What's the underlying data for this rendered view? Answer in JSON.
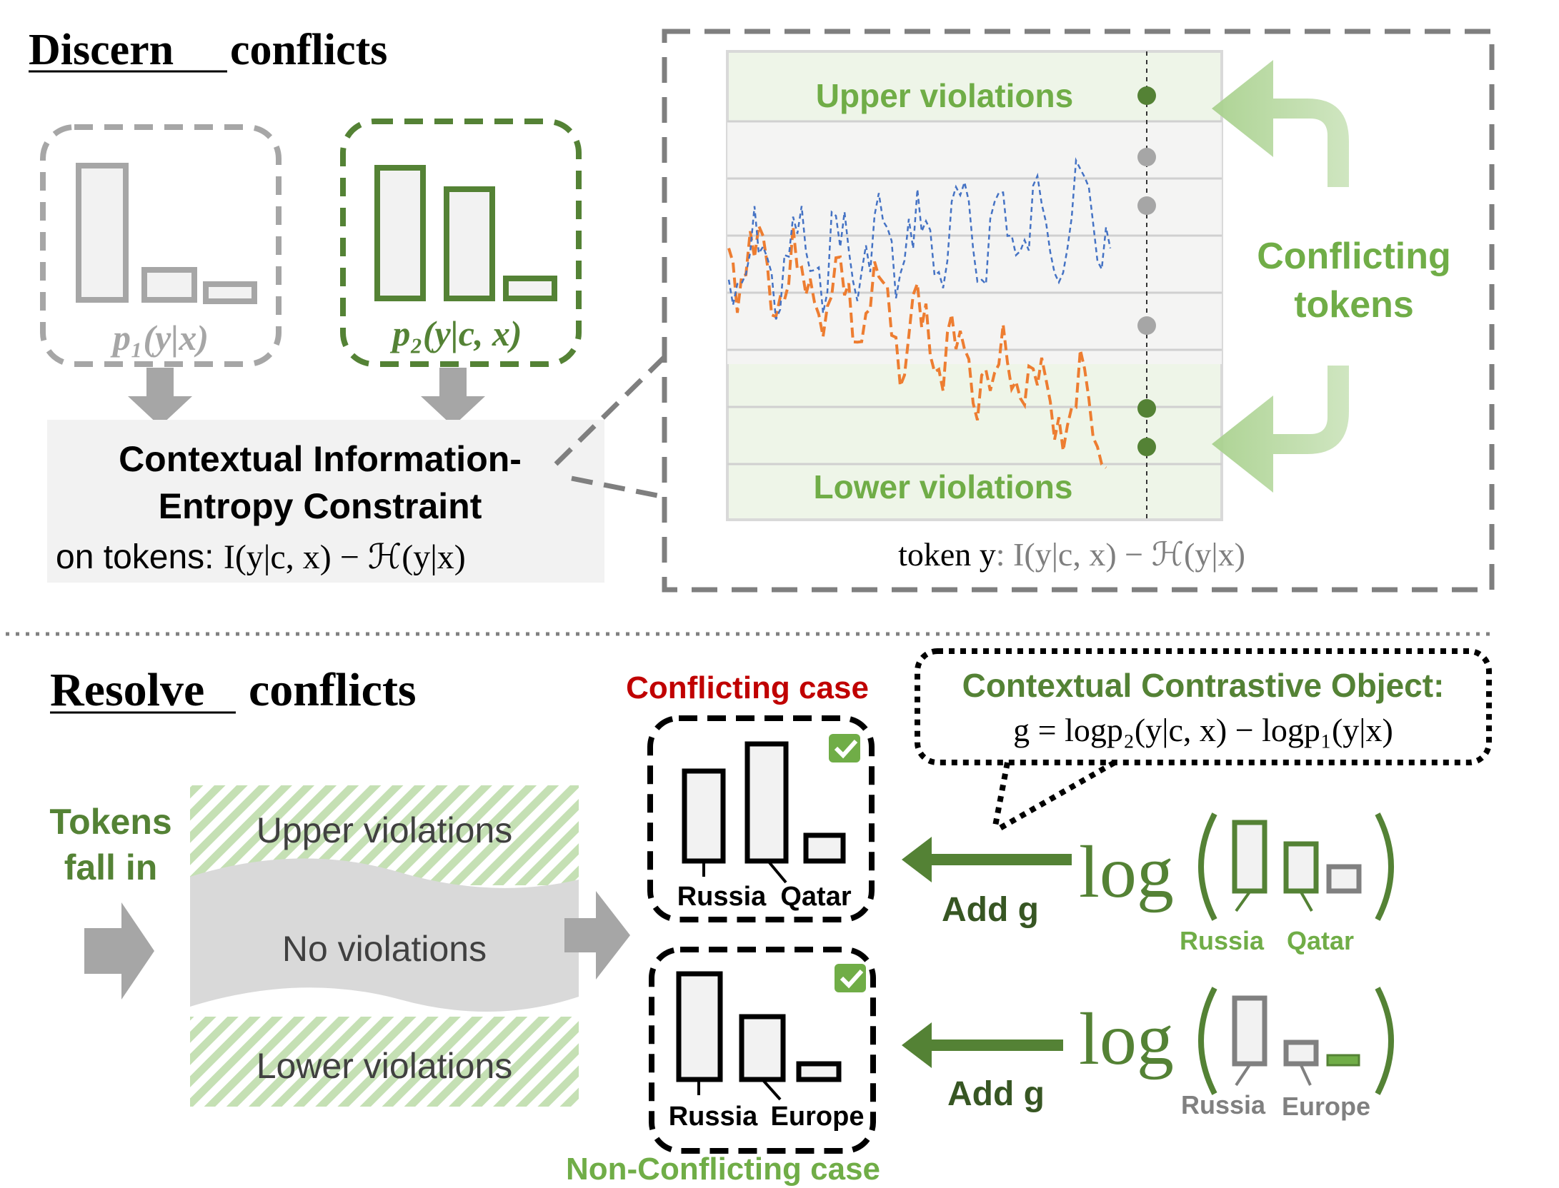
{
  "colors": {
    "green": "#548235",
    "light_green": "#A9D18E",
    "pale_green": "#EEF5E8",
    "gray": "#A6A6A6",
    "dark_gray": "#7F7F7F",
    "panel_gray": "#F2F2F2",
    "orange": "#ED7D31",
    "blue": "#4472C4",
    "red": "#C00000",
    "black": "#000000"
  },
  "discern": {
    "title_word1": "Discern",
    "title_word2": "conflicts",
    "p1_label": "p₁(y|x)",
    "p2_label": "p₂(y|c, x)",
    "constraint_line1": "Contextual Information-",
    "constraint_line2": "Entropy Constraint",
    "constraint_line3_prefix": "on tokens: ",
    "constraint_line3_formula": "I(y|c, x) − ℋ(y|x)"
  },
  "plot": {
    "upper_label": "Upper violations",
    "lower_label": "Lower violations",
    "axis_label_prefix": "token y",
    "axis_label_formula": ": I(y|c, x) − ℋ(y|x)",
    "conflicting_line1": "Conflicting",
    "conflicting_line2": "tokens",
    "dot_states": [
      "green",
      "gray",
      "gray",
      "gray",
      "green",
      "green"
    ]
  },
  "resolve": {
    "title_word1": "Resolve",
    "title_word2": "conflicts",
    "tokens_line1": "Tokens",
    "tokens_line2": "fall in",
    "band_upper": "Upper violations",
    "band_middle": "No violations",
    "band_lower": "Lower violations",
    "conflicting_case": "Conflicting case",
    "non_conflicting_case": "Non-Conflicting case",
    "case1_labels": [
      "Russia",
      "Qatar"
    ],
    "case2_labels": [
      "Russia",
      "Europe"
    ],
    "check_mark": "✅",
    "object_title": "Contextual Contrastive Object:",
    "object_formula": "g = logp₂(y|c, x) − logp₁(y|x)",
    "add_g": "Add g",
    "log_word": "log",
    "log1_labels": [
      "Russia",
      "Qatar"
    ],
    "log2_labels": [
      "Russia",
      "Europe"
    ]
  }
}
